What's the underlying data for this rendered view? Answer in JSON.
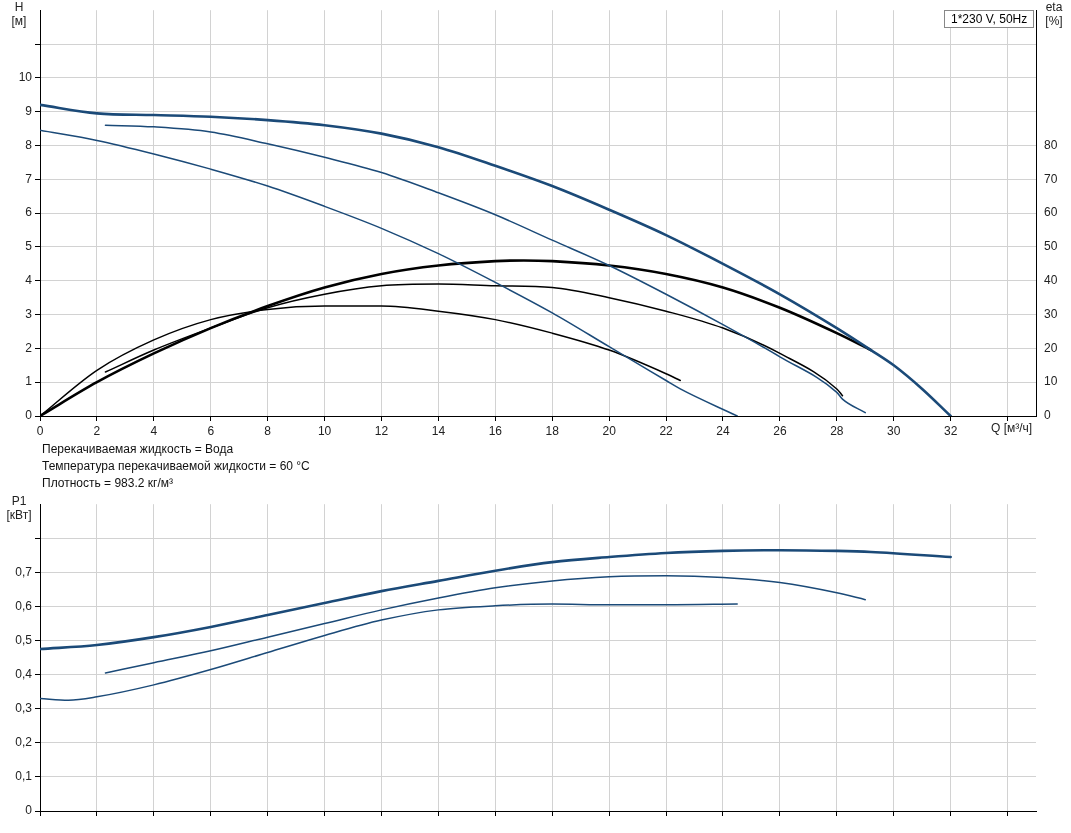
{
  "chart_data": [
    {
      "type": "line",
      "title": "1*230 V, 50Hz",
      "xlabel": "Q [м³/ч]",
      "ylabel": "H [м]",
      "y2label": "eta [%]",
      "xlim": [
        0,
        35
      ],
      "xticks": [
        0,
        2,
        4,
        6,
        8,
        10,
        12,
        14,
        16,
        18,
        20,
        22,
        24,
        26,
        28,
        30,
        32,
        {
          "value": 34,
          "label": null
        }
      ],
      "ylim": [
        0,
        12
      ],
      "yticks": [
        0,
        1,
        2,
        3,
        4,
        5,
        6,
        7,
        8,
        9,
        10,
        {
          "value": 11,
          "label": null
        }
      ],
      "y2lim": [
        0,
        120
      ],
      "y2ticks": [
        0,
        10,
        20,
        30,
        40,
        50,
        60,
        70,
        80
      ],
      "grid": true,
      "marker": "none",
      "line_style": "solid",
      "annotations": [
        "Перекачиваемая жидкость = Вода",
        "Температура перекачиваемой жидкости = 60 °C",
        "Плотность = 983.2 кг/м³"
      ],
      "series": [
        {
          "color": "#1b4a78",
          "x": [
            0,
            2,
            4,
            6,
            8,
            10,
            12,
            14,
            16,
            18,
            20,
            22,
            24,
            26,
            28,
            29.2,
            30,
            31,
            32
          ],
          "values": [
            9.2,
            8.95,
            8.9,
            8.85,
            8.75,
            8.6,
            8.35,
            7.95,
            7.4,
            6.8,
            6.1,
            5.35,
            4.5,
            3.6,
            2.6,
            1.95,
            1.5,
            0.8,
            0
          ]
        },
        {
          "color": "#1b4a78",
          "x": [
            2.3,
            4,
            6,
            8,
            10,
            12,
            14,
            16,
            18,
            20,
            22,
            24,
            26,
            28,
            28.2,
            29
          ],
          "values": [
            8.6,
            8.55,
            8.4,
            8.05,
            7.65,
            7.2,
            6.6,
            5.95,
            5.2,
            4.45,
            3.6,
            2.7,
            1.75,
            0.7,
            0.5,
            0.1
          ]
        },
        {
          "color": "#1b4a78",
          "x": [
            0,
            2,
            4,
            6,
            8,
            10,
            12,
            14,
            16,
            18,
            20,
            22,
            22.5,
            24.5
          ],
          "values": [
            8.45,
            8.15,
            7.75,
            7.3,
            6.8,
            6.2,
            5.55,
            4.8,
            3.95,
            3.05,
            2.05,
            1.05,
            0.8,
            0
          ]
        },
        {
          "color": "#000000",
          "axis": "y2",
          "x": [
            0,
            2,
            4,
            6,
            8,
            10,
            12,
            14,
            16,
            17,
            18,
            20,
            22,
            24,
            26,
            28,
            29.2
          ],
          "values": [
            0,
            10,
            18.5,
            26,
            32.5,
            38,
            42,
            44.5,
            45.8,
            46,
            45.8,
            44.5,
            42,
            38,
            32,
            24.5,
            19.5
          ]
        },
        {
          "color": "#000000",
          "axis": "y2",
          "x": [
            2.3,
            4,
            6,
            8,
            10,
            12,
            14,
            16,
            18,
            20,
            22,
            24,
            26,
            28,
            28.2
          ],
          "values": [
            13,
            19.5,
            26,
            32,
            36,
            38.5,
            39,
            38.5,
            38,
            35,
            31,
            26,
            18.5,
            8,
            6
          ]
        },
        {
          "color": "#000000",
          "axis": "y2",
          "x": [
            0,
            2,
            4,
            6,
            8,
            10,
            12,
            14,
            16,
            18,
            20,
            22,
            22.5
          ],
          "values": [
            0,
            13.5,
            22.5,
            28.5,
            31.5,
            32.5,
            32.5,
            31,
            28.5,
            24.5,
            19.5,
            12.5,
            10.5
          ]
        }
      ]
    },
    {
      "type": "line",
      "ylabel": "P1 [кВт]",
      "tick_labels": "y",
      "xlim": [
        0,
        35
      ],
      "xticks": [
        {
          "value": 0,
          "label": null
        },
        {
          "value": 2,
          "label": null
        },
        {
          "value": 4,
          "label": null
        },
        {
          "value": 6,
          "label": null
        },
        {
          "value": 8,
          "label": null
        },
        {
          "value": 10,
          "label": null
        },
        {
          "value": 12,
          "label": null
        },
        {
          "value": 14,
          "label": null
        },
        {
          "value": 16,
          "label": null
        },
        {
          "value": 18,
          "label": null
        },
        {
          "value": 20,
          "label": null
        },
        {
          "value": 22,
          "label": null
        },
        {
          "value": 24,
          "label": null
        },
        {
          "value": 26,
          "label": null
        },
        {
          "value": 28,
          "label": null
        },
        {
          "value": 30,
          "label": null
        },
        {
          "value": 32,
          "label": null
        },
        {
          "value": 34,
          "label": null
        }
      ],
      "ylim": [
        0,
        0.9
      ],
      "yticks": [
        0,
        {
          "value": 0.1,
          "label": "0,1"
        },
        {
          "value": 0.2,
          "label": "0,2"
        },
        {
          "value": 0.3,
          "label": "0,3"
        },
        {
          "value": 0.4,
          "label": "0,4"
        },
        {
          "value": 0.5,
          "label": "0,5"
        },
        {
          "value": 0.6,
          "label": "0,6"
        },
        {
          "value": 0.7,
          "label": "0,7"
        },
        {
          "value": 0.8,
          "label": null
        }
      ],
      "grid": true,
      "marker": "none",
      "line_style": "solid",
      "series": [
        {
          "color": "#1b4a78",
          "x": [
            0,
            2,
            4,
            6,
            8,
            10,
            12,
            14,
            16,
            18,
            20,
            22,
            24,
            26,
            28,
            29.2,
            32
          ],
          "values": [
            0.475,
            0.487,
            0.51,
            0.54,
            0.575,
            0.61,
            0.645,
            0.675,
            0.705,
            0.73,
            0.745,
            0.757,
            0.763,
            0.765,
            0.763,
            0.76,
            0.745
          ]
        },
        {
          "color": "#1b4a78",
          "x": [
            2.3,
            4,
            6,
            8,
            10,
            12,
            14,
            16,
            18,
            20,
            22,
            24,
            26,
            28,
            29
          ],
          "values": [
            0.405,
            0.435,
            0.47,
            0.51,
            0.55,
            0.59,
            0.625,
            0.655,
            0.675,
            0.687,
            0.69,
            0.685,
            0.67,
            0.64,
            0.62
          ]
        },
        {
          "color": "#1b4a78",
          "x": [
            0,
            1,
            2,
            4,
            6,
            8,
            10,
            12,
            14,
            16,
            18,
            20,
            22,
            24.5
          ],
          "values": [
            0.33,
            0.325,
            0.335,
            0.37,
            0.415,
            0.465,
            0.515,
            0.56,
            0.59,
            0.602,
            0.607,
            0.605,
            0.605,
            0.607
          ]
        }
      ]
    }
  ]
}
